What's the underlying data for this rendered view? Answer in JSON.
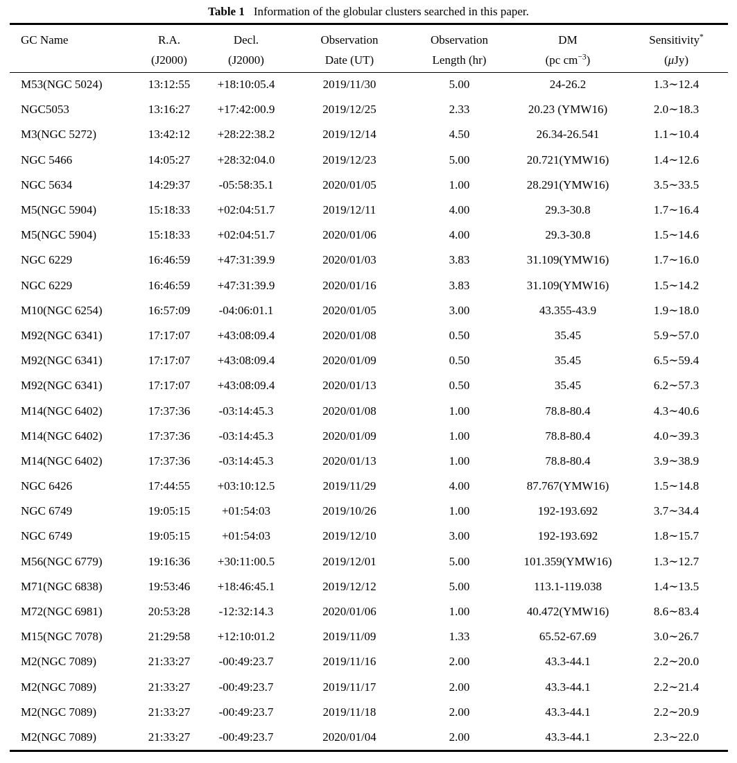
{
  "caption": {
    "label": "Table 1",
    "text": "Information of the globular clusters searched in this paper."
  },
  "table": {
    "columns": [
      {
        "key": "name",
        "line1": "GC Name",
        "line2": ""
      },
      {
        "key": "ra",
        "line1": "R.A.",
        "line2": "(J2000)"
      },
      {
        "key": "decl",
        "line1": "Decl.",
        "line2": "(J2000)"
      },
      {
        "key": "obs_date",
        "line1": "Observation",
        "line2": "Date (UT)"
      },
      {
        "key": "obs_length",
        "line1": "Observation",
        "line2": "Length (hr)"
      },
      {
        "key": "dm",
        "line1": "DM",
        "line2_pre": "(pc cm",
        "line2_sup": "−3",
        "line2_post": ")"
      },
      {
        "key": "sensitivity",
        "line1": "Sensitivity",
        "line1_sup": "*",
        "line2_pre": "(",
        "line2_mu": "μ",
        "line2_post": "Jy)"
      }
    ],
    "rows": [
      [
        "M53(NGC 5024)",
        "13:12:55",
        "+18:10:05.4",
        "2019/11/30",
        "5.00",
        "24-26.2",
        "1.3∼12.4"
      ],
      [
        "NGC5053",
        "13:16:27",
        "+17:42:00.9",
        "2019/12/25",
        "2.33",
        "20.23 (YMW16)",
        "2.0∼18.3"
      ],
      [
        "M3(NGC 5272)",
        "13:42:12",
        "+28:22:38.2",
        "2019/12/14",
        "4.50",
        "26.34-26.541",
        "1.1∼10.4"
      ],
      [
        "NGC 5466",
        "14:05:27",
        "+28:32:04.0",
        "2019/12/23",
        "5.00",
        "20.721(YMW16)",
        "1.4∼12.6"
      ],
      [
        "NGC 5634",
        "14:29:37",
        "-05:58:35.1",
        "2020/01/05",
        "1.00",
        "28.291(YMW16)",
        "3.5∼33.5"
      ],
      [
        "M5(NGC 5904)",
        "15:18:33",
        "+02:04:51.7",
        "2019/12/11",
        "4.00",
        "29.3-30.8",
        "1.7∼16.4"
      ],
      [
        "M5(NGC 5904)",
        "15:18:33",
        "+02:04:51.7",
        "2020/01/06",
        "4.00",
        "29.3-30.8",
        "1.5∼14.6"
      ],
      [
        "NGC 6229",
        "16:46:59",
        "+47:31:39.9",
        "2020/01/03",
        "3.83",
        "31.109(YMW16)",
        "1.7∼16.0"
      ],
      [
        "NGC 6229",
        "16:46:59",
        "+47:31:39.9",
        "2020/01/16",
        "3.83",
        "31.109(YMW16)",
        "1.5∼14.2"
      ],
      [
        "M10(NGC 6254)",
        "16:57:09",
        "-04:06:01.1",
        "2020/01/05",
        "3.00",
        "43.355-43.9",
        "1.9∼18.0"
      ],
      [
        "M92(NGC 6341)",
        "17:17:07",
        "+43:08:09.4",
        "2020/01/08",
        "0.50",
        "35.45",
        "5.9∼57.0"
      ],
      [
        "M92(NGC 6341)",
        "17:17:07",
        "+43:08:09.4",
        "2020/01/09",
        "0.50",
        "35.45",
        "6.5∼59.4"
      ],
      [
        "M92(NGC 6341)",
        "17:17:07",
        "+43:08:09.4",
        "2020/01/13",
        "0.50",
        "35.45",
        "6.2∼57.3"
      ],
      [
        "M14(NGC 6402)",
        "17:37:36",
        "-03:14:45.3",
        "2020/01/08",
        "1.00",
        "78.8-80.4",
        "4.3∼40.6"
      ],
      [
        "M14(NGC 6402)",
        "17:37:36",
        "-03:14:45.3",
        "2020/01/09",
        "1.00",
        "78.8-80.4",
        "4.0∼39.3"
      ],
      [
        "M14(NGC 6402)",
        "17:37:36",
        "-03:14:45.3",
        "2020/01/13",
        "1.00",
        "78.8-80.4",
        "3.9∼38.9"
      ],
      [
        "NGC 6426",
        "17:44:55",
        "+03:10:12.5",
        "2019/11/29",
        "4.00",
        "87.767(YMW16)",
        "1.5∼14.8"
      ],
      [
        "NGC 6749",
        "19:05:15",
        "+01:54:03",
        "2019/10/26",
        "1.00",
        "192-193.692",
        "3.7∼34.4"
      ],
      [
        "NGC 6749",
        "19:05:15",
        "+01:54:03",
        "2019/12/10",
        "3.00",
        "192-193.692",
        "1.8∼15.7"
      ],
      [
        "M56(NGC 6779)",
        "19:16:36",
        "+30:11:00.5",
        "2019/12/01",
        "5.00",
        "101.359(YMW16)",
        "1.3∼12.7"
      ],
      [
        "M71(NGC 6838)",
        "19:53:46",
        "+18:46:45.1",
        "2019/12/12",
        "5.00",
        "113.1-119.038",
        "1.4∼13.5"
      ],
      [
        "M72(NGC 6981)",
        "20:53:28",
        "-12:32:14.3",
        "2020/01/06",
        "1.00",
        "40.472(YMW16)",
        "8.6∼83.4"
      ],
      [
        "M15(NGC 7078)",
        "21:29:58",
        "+12:10:01.2",
        "2019/11/09",
        "1.33",
        "65.52-67.69",
        "3.0∼26.7"
      ],
      [
        "M2(NGC 7089)",
        "21:33:27",
        "-00:49:23.7",
        "2019/11/16",
        "2.00",
        "43.3-44.1",
        "2.2∼20.0"
      ],
      [
        "M2(NGC 7089)",
        "21:33:27",
        "-00:49:23.7",
        "2019/11/17",
        "2.00",
        "43.3-44.1",
        "2.2∼21.4"
      ],
      [
        "M2(NGC 7089)",
        "21:33:27",
        "-00:49:23.7",
        "2019/11/18",
        "2.00",
        "43.3-44.1",
        "2.2∼20.9"
      ],
      [
        "M2(NGC 7089)",
        "21:33:27",
        "-00:49:23.7",
        "2020/01/04",
        "2.00",
        "43.3-44.1",
        "2.3∼22.0"
      ]
    ]
  }
}
